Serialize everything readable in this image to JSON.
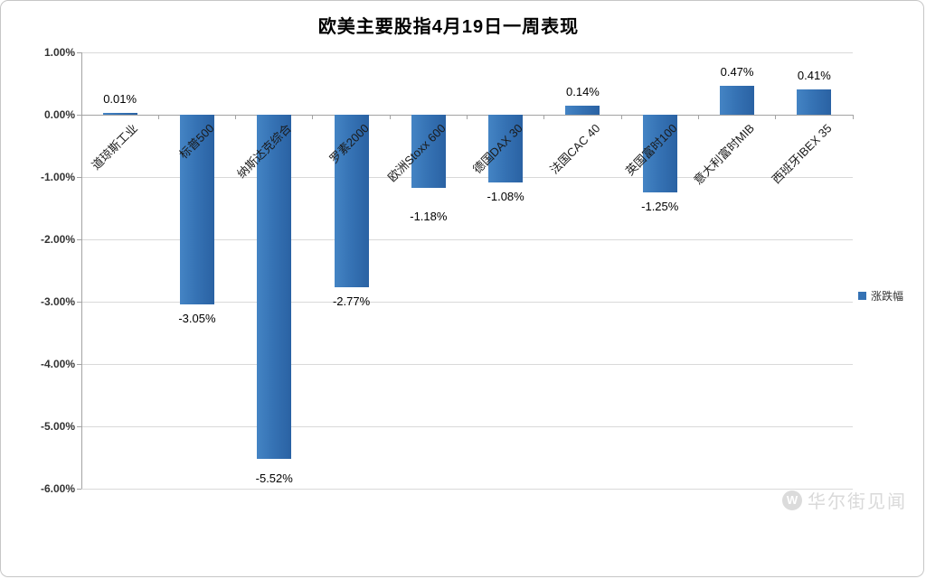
{
  "chart": {
    "watermark": "华尔街见闻",
    "watermark_logo": "W",
    "colors": {
      "bar": "#3572B4",
      "bar_gradient_light": "#4484C4",
      "bar_gradient_dark": "#2A62A3",
      "gridline": "#D9D9D9",
      "axis": "#A3A3A3",
      "text": "#000000",
      "watermark": "#D9D9D9"
    }
  },
  "chart_data": {
    "type": "bar",
    "title": "欧美主要股指4月19日一周表现",
    "categories": [
      "道琼斯工业",
      "标普500",
      "纳斯达克综合",
      "罗素2000",
      "欧洲Stoxx 600",
      "德国DAX 30",
      "法国CAC 40",
      "英国富时100",
      "意大利富时MIB",
      "西班牙IBEX 35"
    ],
    "series": [
      {
        "name": "涨跌幅",
        "values": [
          0.01,
          -3.05,
          -5.52,
          -2.77,
          -1.18,
          -1.08,
          0.14,
          -1.25,
          0.47,
          0.41
        ],
        "data_labels": [
          "0.01%",
          "-3.05%",
          "-5.52%",
          "-2.77%",
          "-1.18%",
          "-1.08%",
          "0.14%",
          "-1.25%",
          "0.47%",
          "0.41%"
        ]
      }
    ],
    "xlabel": "",
    "ylabel": "",
    "ylim": [
      -6,
      1
    ],
    "yticks": [
      "1.00%",
      "0.00%",
      "-1.00%",
      "-2.00%",
      "-3.00%",
      "-4.00%",
      "-5.00%",
      "-6.00%"
    ],
    "grid": true,
    "legend_position": "right"
  }
}
